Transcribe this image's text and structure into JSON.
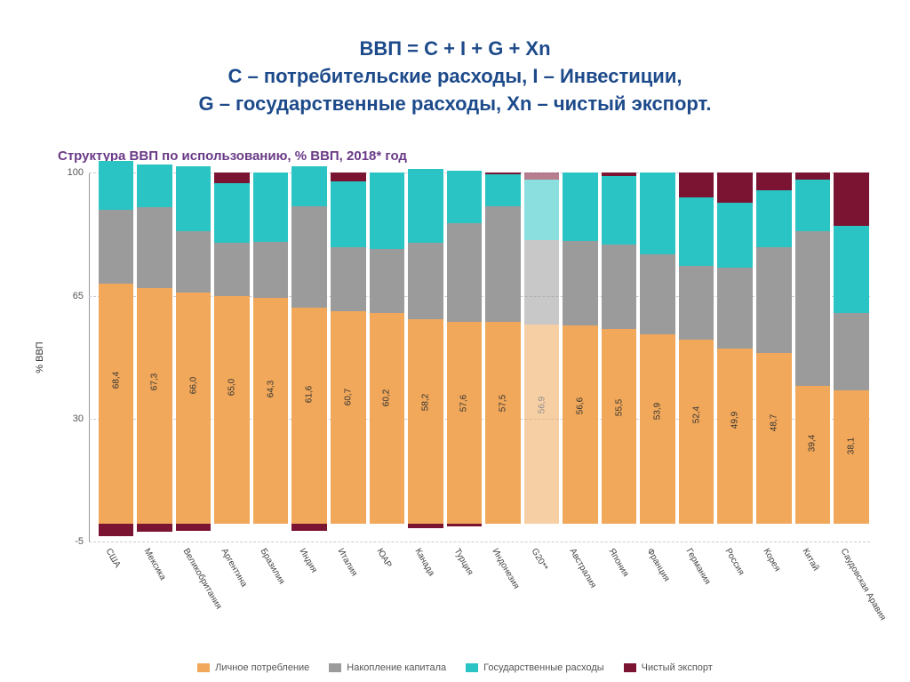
{
  "title": {
    "line1": "ВВП = C + I + G + Xn",
    "line2": "C – потребительские расходы, I – Инвестиции,",
    "line3": "G – государственные расходы, Xn – чистый экспорт.",
    "color": "#1d4a8a",
    "fontsize": 22
  },
  "chart": {
    "title": "Структура ВВП по использованию, % ВВП, 2018* год",
    "title_color": "#6a3a87",
    "title_fontsize": 15,
    "y_axis_label": "% ВВП",
    "y_domain": [
      -5,
      100
    ],
    "y_ticks": [
      -5,
      30,
      65,
      100
    ],
    "gridline_color": "#d0c8d8",
    "background_color": "#ffffff",
    "series": [
      {
        "key": "consumption",
        "label": "Личное потребление",
        "color": "#f1a85a"
      },
      {
        "key": "investment",
        "label": "Накопление капитала",
        "color": "#9b9b9b"
      },
      {
        "key": "government",
        "label": "Государственные расходы",
        "color": "#2bc4c4"
      },
      {
        "key": "net_export",
        "label": "Чистый экспорт",
        "color": "#7a1432"
      }
    ],
    "categories": [
      {
        "name": "США",
        "consumption": 68.4,
        "investment": 21.0,
        "government": 14.1,
        "net_export": -3.5,
        "highlight": false
      },
      {
        "name": "Мексика",
        "consumption": 67.3,
        "investment": 23.0,
        "government": 12.0,
        "net_export": -2.3,
        "highlight": false
      },
      {
        "name": "Великобритания",
        "consumption": 66.0,
        "investment": 17.5,
        "government": 18.5,
        "net_export": -2.0,
        "highlight": false
      },
      {
        "name": "Аргентина",
        "consumption": 65.0,
        "investment": 15.0,
        "government": 17.0,
        "net_export": 3.0,
        "highlight": false
      },
      {
        "name": "Бразилия",
        "consumption": 64.3,
        "investment": 16.0,
        "government": 19.7,
        "net_export": 0.0,
        "highlight": false
      },
      {
        "name": "Индия",
        "consumption": 61.6,
        "investment": 29.0,
        "government": 11.4,
        "net_export": -2.0,
        "highlight": false
      },
      {
        "name": "Италия",
        "consumption": 60.7,
        "investment": 18.0,
        "government": 18.8,
        "net_export": 2.5,
        "highlight": false
      },
      {
        "name": "ЮАР",
        "consumption": 60.2,
        "investment": 18.0,
        "government": 21.8,
        "net_export": 0.0,
        "highlight": false
      },
      {
        "name": "Канада",
        "consumption": 58.2,
        "investment": 22.0,
        "government": 21.0,
        "net_export": -1.2,
        "highlight": false
      },
      {
        "name": "Турция",
        "consumption": 57.6,
        "investment": 28.0,
        "government": 15.0,
        "net_export": -0.6,
        "highlight": false
      },
      {
        "name": "Индонезия",
        "consumption": 57.5,
        "investment": 33.0,
        "government": 9.0,
        "net_export": 0.5,
        "highlight": false
      },
      {
        "name": "G20**",
        "consumption": 56.9,
        "investment": 24.0,
        "government": 17.1,
        "net_export": 2.0,
        "highlight": true
      },
      {
        "name": "Австралия",
        "consumption": 56.6,
        "investment": 24.0,
        "government": 19.4,
        "net_export": 0.0,
        "highlight": false
      },
      {
        "name": "Япония",
        "consumption": 55.5,
        "investment": 24.0,
        "government": 19.5,
        "net_export": 1.0,
        "highlight": false
      },
      {
        "name": "Франция",
        "consumption": 53.9,
        "investment": 23.0,
        "government": 23.1,
        "net_export": 0.0,
        "highlight": false
      },
      {
        "name": "Германия",
        "consumption": 52.4,
        "investment": 21.0,
        "government": 19.6,
        "net_export": 7.0,
        "highlight": false
      },
      {
        "name": "Россия",
        "consumption": 49.9,
        "investment": 23.0,
        "government": 18.6,
        "net_export": 8.5,
        "highlight": false
      },
      {
        "name": "Корея",
        "consumption": 48.7,
        "investment": 30.0,
        "government": 16.3,
        "net_export": 5.0,
        "highlight": false
      },
      {
        "name": "Китай",
        "consumption": 39.4,
        "investment": 44.0,
        "government": 14.6,
        "net_export": 2.0,
        "highlight": false
      },
      {
        "name": "Саудовская Аравия",
        "consumption": 38.1,
        "investment": 22.0,
        "government": 24.9,
        "net_export": 15.0,
        "highlight": false
      }
    ],
    "highlight_opacity": 0.55,
    "bar_label_fontsize": 10,
    "x_label_fontsize": 10,
    "x_label_rotation_deg": 60
  }
}
